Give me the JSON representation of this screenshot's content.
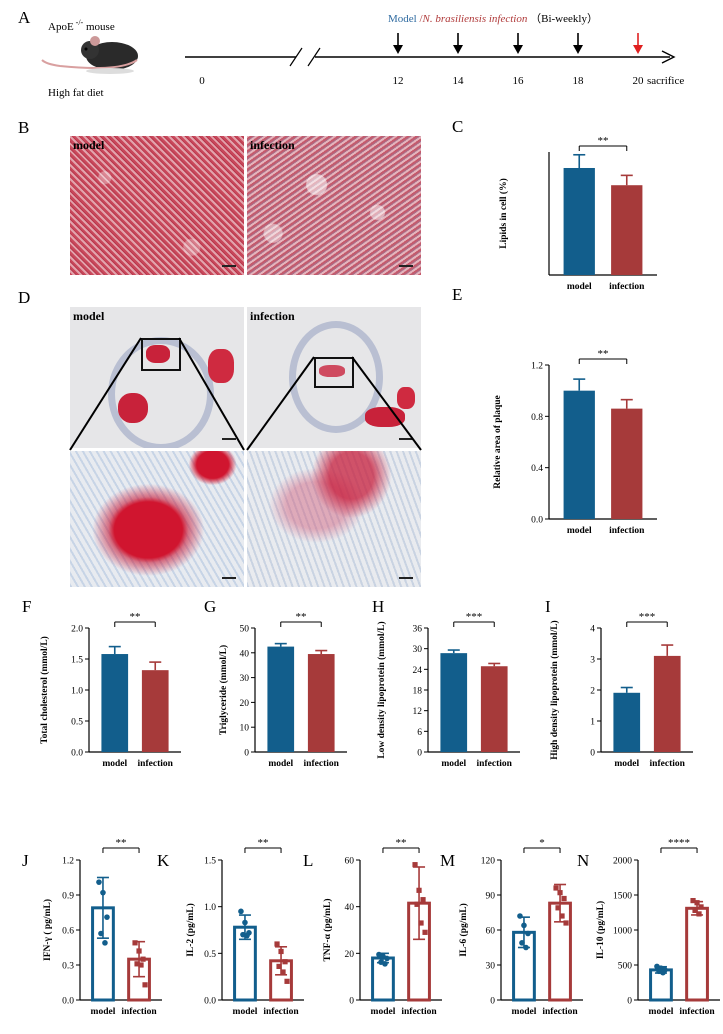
{
  "panels": {
    "A": {
      "letter": "A",
      "mouse_label": "ApoE",
      "mouse_superscript": "-/-",
      "mouse_label_suffix": " mouse",
      "diet_label": "High fat diet",
      "legend_model": "Model",
      "legend_sep": " /",
      "legend_nb": "N. brasiliensis",
      "legend_infection": "infection",
      "legend_biweekly": "（Bi-weekly）",
      "ticks": [
        "0",
        "12",
        "14",
        "16",
        "18",
        "20"
      ],
      "end_label": "sacrifice",
      "colors": {
        "model_text": "#2e6aa0",
        "infection_text": "#b03a3a",
        "red_arrow": "#e02020"
      }
    },
    "B": {
      "letter": "B",
      "left_label": "model",
      "right_label": "infection"
    },
    "D": {
      "letter": "D",
      "left_label": "model",
      "right_label": "infection"
    }
  },
  "colors": {
    "model": "#125e8c",
    "infection": "#a63a3a"
  },
  "chart_data": [
    {
      "id": "C",
      "letter": "C",
      "type": "bar",
      "categories": [
        "model",
        "infection"
      ],
      "values": [
        34.8,
        29.2
      ],
      "errors": [
        4.3,
        3.2
      ],
      "ylabel": "Lipids in cell (%)",
      "ylim": [
        0,
        40
      ],
      "yticks": [],
      "show_axis_ticks_labels": false,
      "significance": "**",
      "style": "filled"
    },
    {
      "id": "E",
      "letter": "E",
      "type": "bar",
      "categories": [
        "model",
        "infection"
      ],
      "values": [
        1.0,
        0.86
      ],
      "errors": [
        0.09,
        0.07
      ],
      "ylabel": "Relative area of plaque",
      "ylim": [
        0,
        1.2
      ],
      "yticks": [
        "0.0",
        "0.4",
        "0.8",
        "1.2"
      ],
      "significance": "**",
      "style": "filled"
    },
    {
      "id": "F",
      "letter": "F",
      "type": "bar",
      "categories": [
        "model",
        "infection"
      ],
      "values": [
        1.58,
        1.32
      ],
      "errors": [
        0.12,
        0.13
      ],
      "ylabel": "Total cholesterol (mmol/L)",
      "ylim": [
        0,
        2.0
      ],
      "yticks": [
        "0.0",
        "0.5",
        "1.0",
        "1.5",
        "2.0"
      ],
      "significance": "**",
      "style": "filled"
    },
    {
      "id": "G",
      "letter": "G",
      "type": "bar",
      "categories": [
        "model",
        "infection"
      ],
      "values": [
        42.5,
        39.5
      ],
      "errors": [
        1.2,
        1.4
      ],
      "ylabel": "Triglyceride (mmol/L)",
      "ylim": [
        0,
        50
      ],
      "yticks": [
        "0",
        "10",
        "20",
        "30",
        "40",
        "50"
      ],
      "significance": "**",
      "style": "filled"
    },
    {
      "id": "H",
      "letter": "H",
      "type": "bar",
      "categories": [
        "model",
        "infection"
      ],
      "values": [
        28.7,
        24.9
      ],
      "errors": [
        0.9,
        0.8
      ],
      "ylabel": "Low density lipoprotein (mmol/L)",
      "ylim": [
        0,
        36
      ],
      "yticks": [
        "0",
        "6",
        "12",
        "18",
        "24",
        "30",
        "36"
      ],
      "significance": "***",
      "style": "filled"
    },
    {
      "id": "I",
      "letter": "I",
      "type": "bar",
      "categories": [
        "model",
        "infection"
      ],
      "values": [
        1.91,
        3.1
      ],
      "errors": [
        0.17,
        0.35
      ],
      "ylabel": "High density lipoprotein (mmol/L)",
      "ylim": [
        0,
        4
      ],
      "yticks": [
        "0",
        "1",
        "2",
        "3",
        "4"
      ],
      "significance": "***",
      "style": "filled"
    },
    {
      "id": "J",
      "letter": "J",
      "type": "bar",
      "categories": [
        "model",
        "infection"
      ],
      "values": [
        0.79,
        0.35
      ],
      "errors": [
        0.26,
        0.15
      ],
      "points": [
        [
          1.01,
          0.92,
          0.71,
          0.57,
          0.49
        ],
        [
          0.49,
          0.42,
          0.35,
          0.31,
          0.3,
          0.13
        ]
      ],
      "ylabel": "IFN-γ ( pg/mL)",
      "ylim": [
        0,
        1.2
      ],
      "yticks": [
        "0.0",
        "0.3",
        "0.6",
        "0.9",
        "1.2"
      ],
      "significance": "**",
      "style": "outline"
    },
    {
      "id": "K",
      "letter": "K",
      "type": "bar",
      "categories": [
        "model",
        "infection"
      ],
      "values": [
        0.78,
        0.42
      ],
      "errors": [
        0.13,
        0.15
      ],
      "points": [
        [
          0.95,
          0.83,
          0.72,
          0.7,
          0.69
        ],
        [
          0.6,
          0.52,
          0.41,
          0.36,
          0.3,
          0.2
        ]
      ],
      "ylabel": "IL-2 (pg/mL)",
      "ylim": [
        0,
        1.5
      ],
      "yticks": [
        "0.0",
        "0.5",
        "1.0",
        "1.5"
      ],
      "significance": "**",
      "style": "outline"
    },
    {
      "id": "L",
      "letter": "L",
      "type": "bar",
      "categories": [
        "model",
        "infection"
      ],
      "values": [
        18,
        41.5
      ],
      "errors": [
        2,
        15.5
      ],
      "points": [
        [
          19.5,
          18.8,
          17.8,
          16.2,
          15.5
        ],
        [
          58,
          47,
          43,
          41,
          33,
          29
        ]
      ],
      "ylabel": "TNF-α (pg/mL)",
      "ylim": [
        0,
        60
      ],
      "yticks": [
        "0",
        "20",
        "40",
        "60"
      ],
      "significance": "**",
      "style": "outline"
    },
    {
      "id": "M",
      "letter": "M",
      "type": "bar",
      "categories": [
        "model",
        "infection"
      ],
      "values": [
        58,
        83
      ],
      "errors": [
        13,
        16
      ],
      "points": [
        [
          72,
          64,
          57,
          49,
          45
        ],
        [
          96,
          92,
          87,
          79,
          72,
          66
        ]
      ],
      "ylabel": "IL-6 (pg/mL)",
      "ylim": [
        0,
        120
      ],
      "yticks": [
        "0",
        "30",
        "60",
        "90",
        "120"
      ],
      "significance": "*",
      "style": "outline"
    },
    {
      "id": "N",
      "letter": "N",
      "type": "bar",
      "categories": [
        "model",
        "infection"
      ],
      "values": [
        430,
        1310
      ],
      "errors": [
        45,
        95
      ],
      "points": [
        [
          480,
          455,
          430,
          410,
          390
        ],
        [
          1420,
          1390,
          1330,
          1280,
          1230
        ]
      ],
      "ylabel": "IL-10 (pg/mL)",
      "ylim": [
        0,
        2000
      ],
      "yticks": [
        "0",
        "500",
        "1000",
        "1500",
        "2000"
      ],
      "significance": "****",
      "style": "outline"
    }
  ]
}
